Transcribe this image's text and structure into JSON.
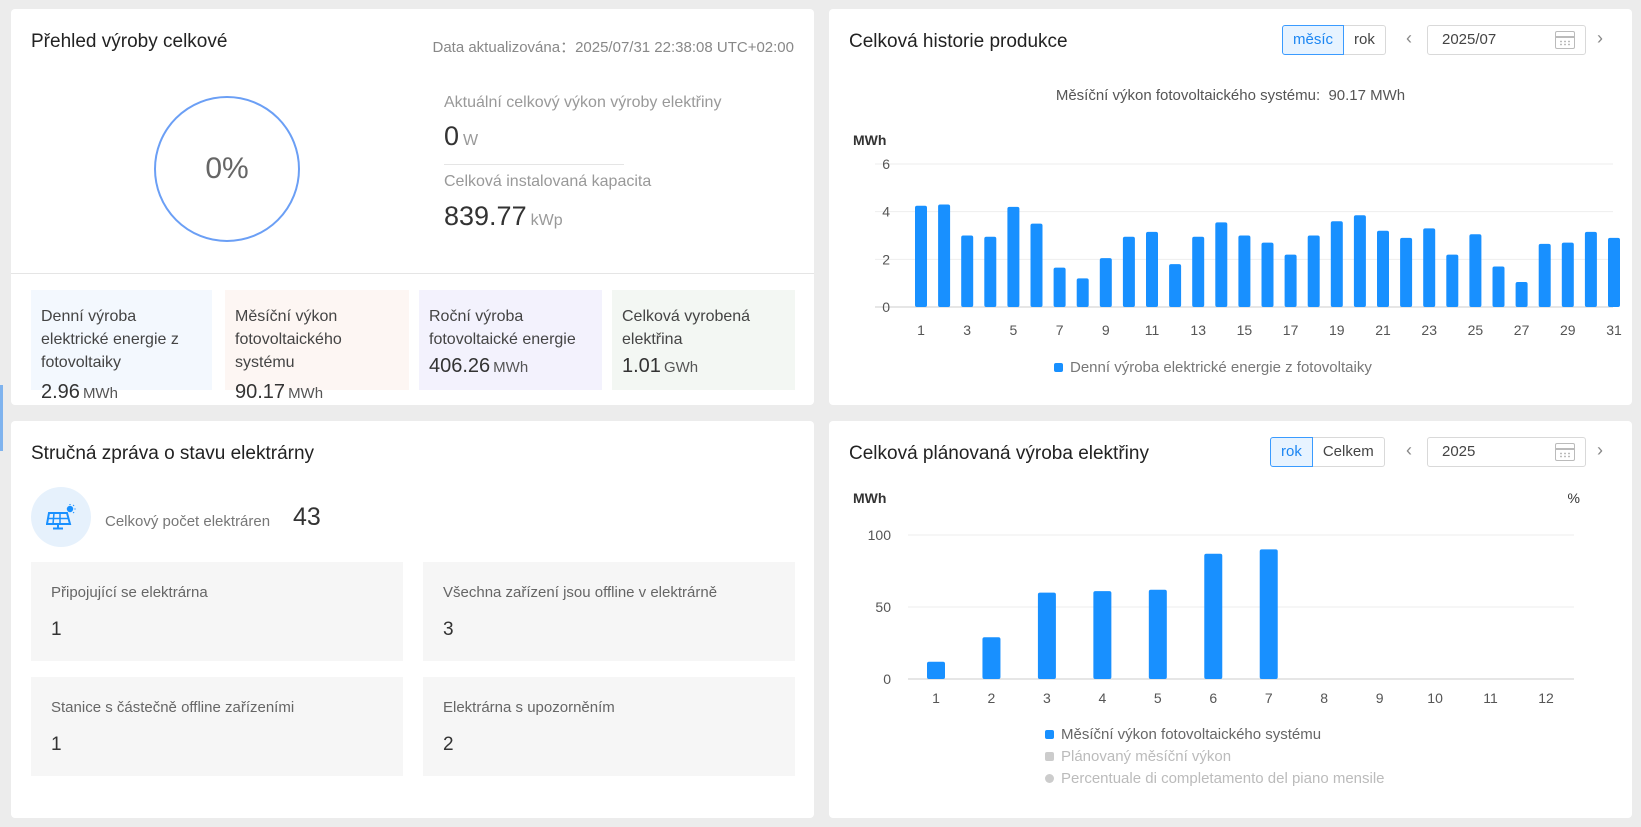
{
  "overview": {
    "title": "Přehled výroby celkové",
    "updated_label": "Data aktualizována：2025/07/31 22:38:08 UTC+02:00",
    "ring_percent": "0%",
    "current_power_label": "Aktuální celkový výkon výroby elektřiny",
    "current_power_value": "0",
    "current_power_unit": "W",
    "capacity_label": "Celková instalovaná kapacita",
    "capacity_value": "839.77",
    "capacity_unit": "kWp",
    "stats": [
      {
        "label": "Denní výroba elektrické energie z fotovoltaiky",
        "value": "2.96",
        "unit": "MWh",
        "bg": "#f3f8fe"
      },
      {
        "label": "Měsíční výkon fotovoltaického systému",
        "value": "90.17",
        "unit": "MWh",
        "bg": "#fdf6f3"
      },
      {
        "label": "Roční výroba fotovoltaické energie",
        "value": "406.26",
        "unit": "MWh",
        "bg": "#f3f2fd"
      },
      {
        "label": "Celková vyrobená elektřina",
        "value": "1.01",
        "unit": "GWh",
        "bg": "#f3f7f3"
      }
    ]
  },
  "history": {
    "title": "Celková historie produkce",
    "toggle": [
      "měsíc",
      "rok"
    ],
    "date": "2025/07",
    "subtitle_label": "Měsíční výkon fotovoltaického systému:",
    "subtitle_value": "90.17 MWh",
    "legend": "Denní výroba elektrické energie z fotovoltaiky",
    "unit_label": "MWh"
  },
  "report": {
    "title": "Stručná zpráva o stavu elektrárny",
    "count_label": "Celkový počet elektráren",
    "count_value": "43",
    "boxes": [
      {
        "label": "Připojující se elektrárna",
        "value": "1"
      },
      {
        "label": "Všechna zařízení jsou offline v elektrárně",
        "value": "3"
      },
      {
        "label": "Stanice s částečně offline zařízeními",
        "value": "1"
      },
      {
        "label": "Elektrárna s upozorněním",
        "value": "2"
      }
    ]
  },
  "planned": {
    "title": "Celková plánovaná výroba elektřiny",
    "toggle": [
      "rok",
      "Celkem"
    ],
    "date": "2025",
    "unit_left": "MWh",
    "unit_right": "%",
    "legend": [
      {
        "label": "Měsíční výkon fotovoltaického systému",
        "color": "#1890ff",
        "shape": "square"
      },
      {
        "label": "Plánovaný měsíční výkon",
        "color": "#cccccc",
        "shape": "square"
      },
      {
        "label": "Percentuale di completamento del piano mensile",
        "color": "#cccccc",
        "shape": "circle"
      }
    ]
  },
  "colors": {
    "accent": "#1890ff",
    "ring": "#6b9ff5"
  },
  "chart_data": [
    {
      "type": "bar",
      "title": "",
      "ylabel": "MWh",
      "ylim": [
        0,
        6
      ],
      "yticks": [
        0,
        2,
        4,
        6
      ],
      "xtick_labels": [
        1,
        3,
        5,
        7,
        9,
        11,
        13,
        15,
        17,
        19,
        21,
        23,
        25,
        27,
        29,
        31
      ],
      "categories": [
        1,
        2,
        3,
        4,
        5,
        6,
        7,
        8,
        9,
        10,
        11,
        12,
        13,
        14,
        15,
        16,
        17,
        18,
        19,
        20,
        21,
        22,
        23,
        24,
        25,
        26,
        27,
        28,
        29,
        30,
        31
      ],
      "series": [
        {
          "name": "Denní výroba elektrické energie z fotovoltaiky",
          "values": [
            4.25,
            4.3,
            3.0,
            2.95,
            4.2,
            3.5,
            1.65,
            1.2,
            2.05,
            2.95,
            3.15,
            1.8,
            2.95,
            3.55,
            3.0,
            2.7,
            2.2,
            3.0,
            3.6,
            3.85,
            3.2,
            2.9,
            3.3,
            2.2,
            3.05,
            1.7,
            1.05,
            2.65,
            2.7,
            3.15,
            2.9
          ]
        }
      ]
    },
    {
      "type": "bar",
      "title": "",
      "ylabel": "MWh",
      "ylim": [
        0,
        100
      ],
      "yticks": [
        0,
        50,
        100
      ],
      "categories": [
        1,
        2,
        3,
        4,
        5,
        6,
        7,
        8,
        9,
        10,
        11,
        12
      ],
      "series": [
        {
          "name": "Měsíční výkon fotovoltaického systému",
          "values": [
            12,
            29,
            60,
            61,
            62,
            87,
            90,
            null,
            null,
            null,
            null,
            null
          ]
        }
      ]
    }
  ]
}
